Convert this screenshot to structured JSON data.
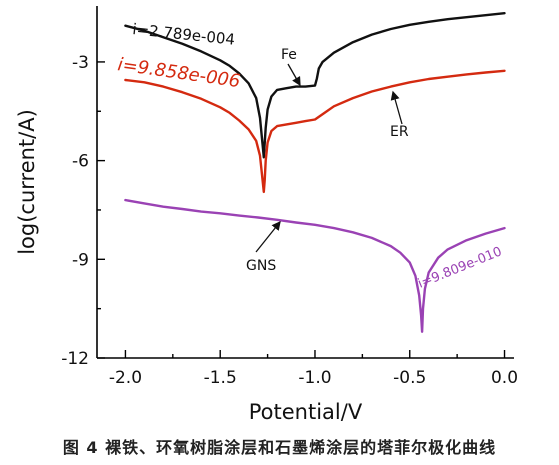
{
  "chart_data": {
    "type": "line",
    "title": "",
    "xlabel": "Potential/V",
    "ylabel": "log(current/A)",
    "xlim": [
      -2.15,
      0.05
    ],
    "ylim": [
      -12,
      -1.3
    ],
    "xticks": [
      -2.0,
      -1.5,
      -1.0,
      -0.5,
      0.0
    ],
    "xtick_labels": [
      "-2.0",
      "-1.5",
      "-1.0",
      "-0.5",
      "0.0"
    ],
    "yticks": [
      -3,
      -6,
      -9,
      -12
    ],
    "ytick_labels": [
      "-3",
      "-6",
      "-9",
      "-12"
    ],
    "grid": false,
    "series": [
      {
        "name": "Fe",
        "color": "#111111",
        "x": [
          -2.0,
          -1.9,
          -1.8,
          -1.7,
          -1.6,
          -1.5,
          -1.45,
          -1.4,
          -1.35,
          -1.31,
          -1.29,
          -1.28,
          -1.27,
          -1.26,
          -1.25,
          -1.23,
          -1.2,
          -1.15,
          -1.1,
          -1.05,
          -1.0,
          -0.99,
          -0.98,
          -0.96,
          -0.9,
          -0.8,
          -0.7,
          -0.6,
          -0.5,
          -0.4,
          -0.3,
          -0.2,
          -0.1,
          0.0
        ],
        "y": [
          -1.9,
          -2.05,
          -2.25,
          -2.45,
          -2.68,
          -2.95,
          -3.12,
          -3.35,
          -3.65,
          -4.1,
          -4.7,
          -5.3,
          -5.9,
          -5.0,
          -4.45,
          -4.05,
          -3.85,
          -3.8,
          -3.75,
          -3.75,
          -3.72,
          -3.5,
          -3.2,
          -3.0,
          -2.72,
          -2.4,
          -2.17,
          -2.0,
          -1.87,
          -1.78,
          -1.7,
          -1.64,
          -1.58,
          -1.52
        ]
      },
      {
        "name": "ER",
        "color": "#d42a10",
        "x": [
          -2.0,
          -1.9,
          -1.8,
          -1.7,
          -1.6,
          -1.5,
          -1.45,
          -1.4,
          -1.35,
          -1.31,
          -1.29,
          -1.28,
          -1.27,
          -1.265,
          -1.26,
          -1.25,
          -1.23,
          -1.2,
          -1.15,
          -1.1,
          -1.05,
          -1.0,
          -0.95,
          -0.9,
          -0.8,
          -0.7,
          -0.6,
          -0.5,
          -0.4,
          -0.3,
          -0.2,
          -0.1,
          0.0
        ],
        "y": [
          -3.55,
          -3.62,
          -3.75,
          -3.92,
          -4.12,
          -4.38,
          -4.55,
          -4.78,
          -5.05,
          -5.4,
          -5.85,
          -6.4,
          -6.95,
          -6.6,
          -6.0,
          -5.45,
          -5.1,
          -4.95,
          -4.9,
          -4.85,
          -4.8,
          -4.75,
          -4.55,
          -4.35,
          -4.1,
          -3.9,
          -3.75,
          -3.62,
          -3.52,
          -3.45,
          -3.38,
          -3.32,
          -3.27
        ]
      },
      {
        "name": "GNS",
        "color": "#9a42b4",
        "x": [
          -2.0,
          -1.9,
          -1.8,
          -1.7,
          -1.6,
          -1.5,
          -1.4,
          -1.3,
          -1.2,
          -1.1,
          -1.0,
          -0.9,
          -0.8,
          -0.7,
          -0.6,
          -0.55,
          -0.5,
          -0.47,
          -0.45,
          -0.44,
          -0.435,
          -0.43,
          -0.42,
          -0.4,
          -0.35,
          -0.3,
          -0.2,
          -0.1,
          0.0
        ],
        "y": [
          -7.2,
          -7.3,
          -7.4,
          -7.47,
          -7.55,
          -7.6,
          -7.67,
          -7.73,
          -7.8,
          -7.88,
          -7.95,
          -8.05,
          -8.18,
          -8.35,
          -8.6,
          -8.8,
          -9.1,
          -9.5,
          -10.1,
          -10.7,
          -11.2,
          -10.5,
          -9.9,
          -9.4,
          -8.95,
          -8.7,
          -8.42,
          -8.22,
          -8.05
        ]
      }
    ],
    "annotations": [
      {
        "text": "i=2.789e-004",
        "color": "#111111"
      },
      {
        "text": "Fe",
        "color": "#111111"
      },
      {
        "text": "i=9.858e-006",
        "color": "#d42a10"
      },
      {
        "text": "ER",
        "color": "#111111"
      },
      {
        "text": "GNS",
        "color": "#111111"
      },
      {
        "text": "i=9.809e-010",
        "color": "#9a42b4"
      }
    ]
  },
  "caption": "图 4  裸铁、环氧树脂涂层和石墨烯涂层的塔菲尔极化曲线"
}
